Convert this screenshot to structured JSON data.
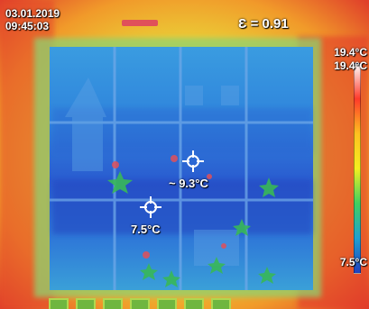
{
  "header": {
    "date": "03.01.2019",
    "time": "09:45:03",
    "emissivity": "Ɛ = 0.91"
  },
  "color_scale": {
    "max_label": "19.4°C",
    "span_label": "19.4°C",
    "min_label": "7.5°C",
    "colors": [
      "#ffffff",
      "#ff3a2a",
      "#ffc020",
      "#f4f020",
      "#40d060",
      "#20a0d0",
      "#2040c0"
    ]
  },
  "measurements": {
    "spot_1": "~ 9.3°C",
    "spot_2": "7.5°C"
  },
  "palette": {
    "hot": "#e23a2a",
    "warm": "#f4a020",
    "mid": "#e8e830",
    "cool": "#40c8e0",
    "cold": "#2a52c8",
    "accent": "#e0505a"
  },
  "icons": {
    "spot_marker": "crosshair-icon"
  }
}
